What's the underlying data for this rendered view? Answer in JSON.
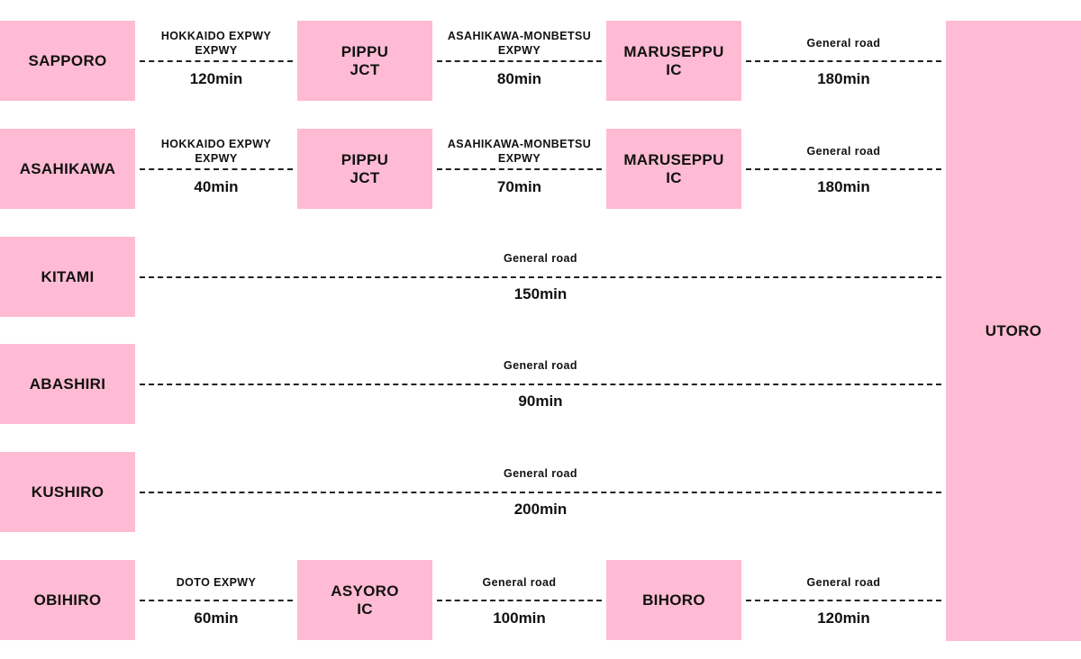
{
  "destination": "UTORO",
  "routes": [
    {
      "origin": "SAPPORO",
      "legs": [
        {
          "road": "HOKKAIDO EXPWY\nEXPWY",
          "time": "120min",
          "to": "PIPPU\nJCT"
        },
        {
          "road": "ASAHIKAWA-MONBETSU\nEXPWY",
          "time": "80min",
          "to": "MARUSEPPU\nIC"
        },
        {
          "road": "General road",
          "time": "180min"
        }
      ]
    },
    {
      "origin": "ASAHIKAWA",
      "legs": [
        {
          "road": "HOKKAIDO EXPWY\nEXPWY",
          "time": "40min",
          "to": "PIPPU\nJCT"
        },
        {
          "road": "ASAHIKAWA-MONBETSU\nEXPWY",
          "time": "70min",
          "to": "MARUSEPPU\nIC"
        },
        {
          "road": "General road",
          "time": "180min"
        }
      ]
    },
    {
      "origin": "KITAMI",
      "legs": [
        {
          "road": "General road",
          "time": "150min"
        }
      ]
    },
    {
      "origin": "ABASHIRI",
      "legs": [
        {
          "road": "General road",
          "time": "90min"
        }
      ]
    },
    {
      "origin": "KUSHIRO",
      "legs": [
        {
          "road": "General road",
          "time": "200min"
        }
      ]
    },
    {
      "origin": "OBIHIRO",
      "legs": [
        {
          "road": "DOTO EXPWY",
          "time": "60min",
          "to": "ASYORO\nIC"
        },
        {
          "road": "General road",
          "time": "100min",
          "to": "BIHORO"
        },
        {
          "road": "General road",
          "time": "120min"
        }
      ]
    }
  ]
}
